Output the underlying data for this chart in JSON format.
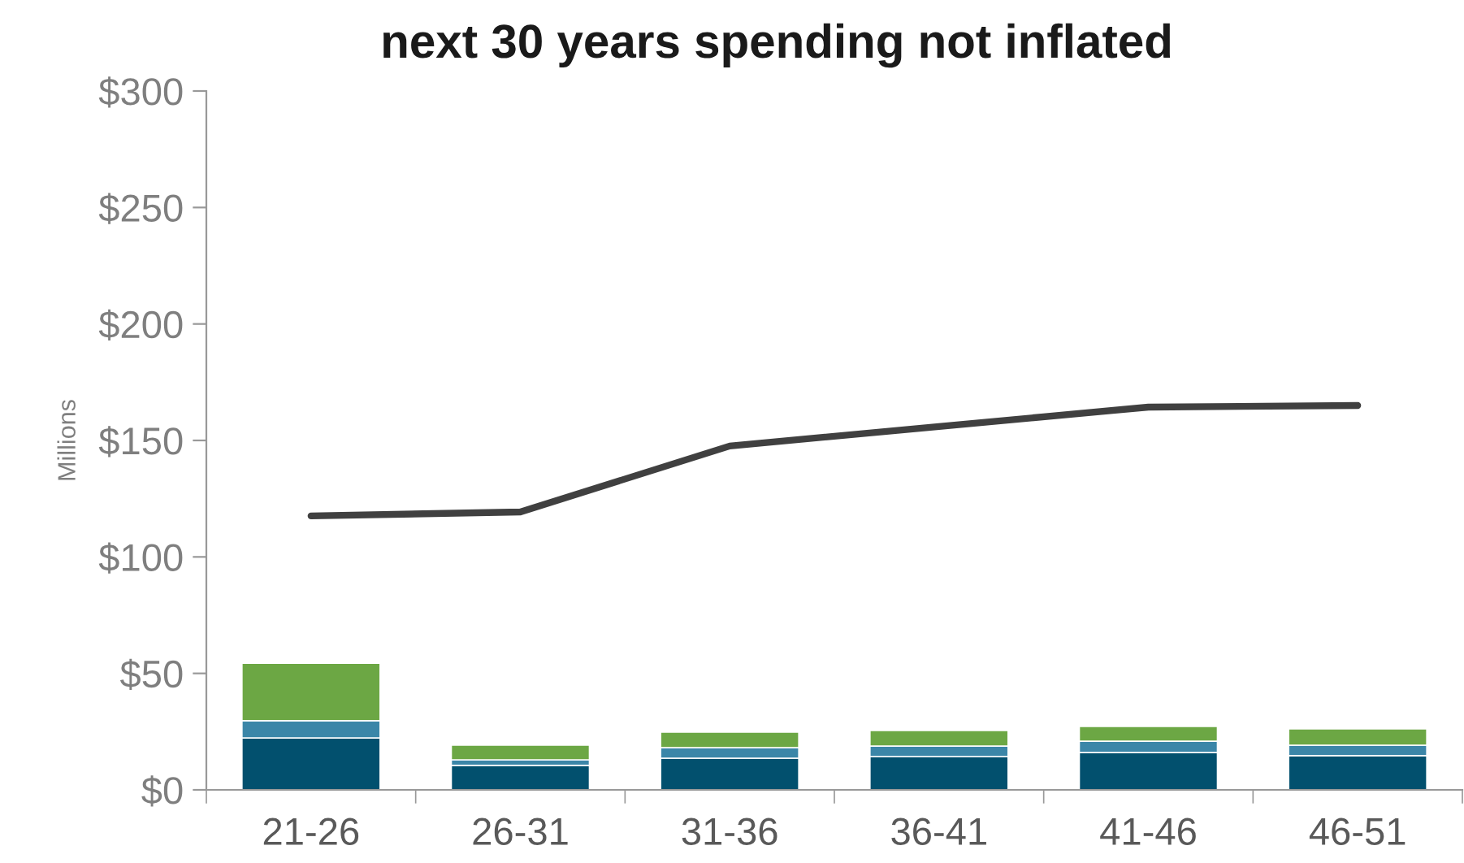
{
  "chart_data": {
    "type": "bar",
    "stacked": true,
    "title": "next 30 years spending not inflated",
    "ylabel": "Millions",
    "categories": [
      "21-26",
      "26-31",
      "31-36",
      "36-41",
      "41-46",
      "46-51"
    ],
    "series": [
      {
        "color": "#02506e",
        "values": [
          22.3,
          10.5,
          13.6,
          14.3,
          16.0,
          14.7
        ]
      },
      {
        "color": "#3b86a8",
        "values": [
          7.4,
          2.4,
          4.5,
          4.5,
          4.9,
          4.5
        ]
      },
      {
        "color": "#6ca744",
        "values": [
          24.7,
          6.3,
          6.7,
          6.7,
          6.3,
          7.0
        ]
      },
      {
        "type": "line",
        "color": "#404040",
        "values": [
          117.6,
          119.3,
          147.6,
          156,
          164.3,
          165.0
        ]
      }
    ],
    "ylim": [
      0,
      300
    ],
    "yticks": [
      {
        "value": 0,
        "label": "$0"
      },
      {
        "value": 50,
        "label": "$50"
      },
      {
        "value": 100,
        "label": "$100"
      },
      {
        "value": 150,
        "label": "$150"
      },
      {
        "value": 200,
        "label": "$200"
      },
      {
        "value": 250,
        "label": "$250"
      },
      {
        "value": 300,
        "label": "$300"
      }
    ],
    "grid": false,
    "legend": false
  }
}
